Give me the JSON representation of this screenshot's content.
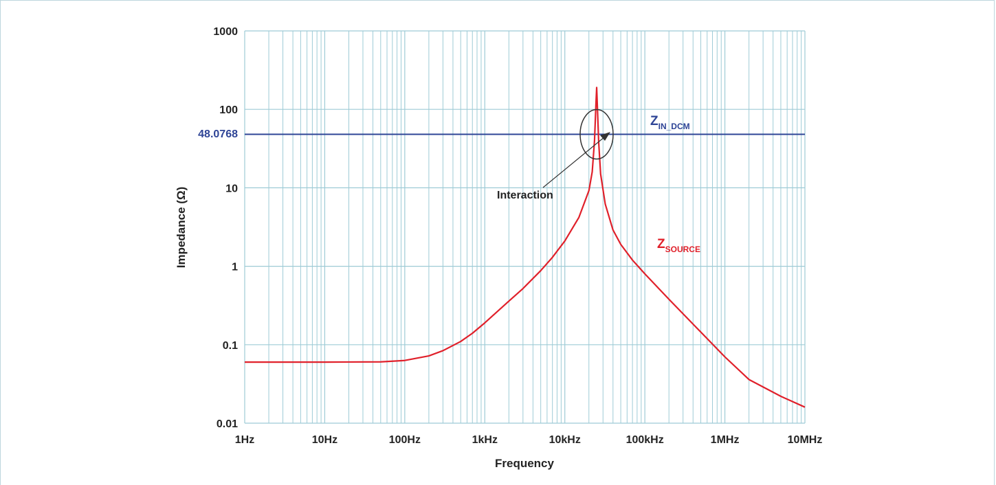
{
  "chart_data": {
    "type": "line",
    "title": "",
    "xlabel": "Frequency",
    "ylabel": "Impedance (Ω)",
    "x_scale": "log",
    "y_scale": "log",
    "xlim": [
      1,
      10000000
    ],
    "ylim": [
      0.01,
      1000
    ],
    "grid": true,
    "x_tick_labels": [
      "1Hz",
      "10Hz",
      "100Hz",
      "1kHz",
      "10kHz",
      "100kHz",
      "1MHz",
      "10MHz"
    ],
    "x_tick_values": [
      1,
      10,
      100,
      1000,
      10000,
      100000,
      1000000,
      10000000
    ],
    "y_tick_labels": [
      "0.01",
      "0.1",
      "1",
      "10",
      "100",
      "1000"
    ],
    "y_tick_values": [
      0.01,
      0.1,
      1,
      10,
      100,
      1000
    ],
    "series": [
      {
        "name": "",
        "label_main": "Z",
        "label_sub": "IN_DCM",
        "color": "#2e4496",
        "x": [
          1,
          10000000
        ],
        "y": [
          48.0768,
          48.0768
        ],
        "value_label": "48.0768"
      },
      {
        "name": "",
        "label_main": "Z",
        "label_sub": "SOURCE",
        "color": "#e0202a",
        "x": [
          1,
          10,
          50,
          100,
          200,
          300,
          500,
          700,
          1000,
          2000,
          3000,
          5000,
          7000,
          10000,
          15000,
          20000,
          22000,
          23500,
          24500,
          25000,
          25500,
          26500,
          28000,
          32000,
          40000,
          50000,
          70000,
          100000,
          200000,
          500000,
          1000000,
          2000000,
          5000000,
          10000000
        ],
        "y": [
          0.06,
          0.06,
          0.0605,
          0.063,
          0.072,
          0.084,
          0.11,
          0.14,
          0.19,
          0.36,
          0.52,
          0.88,
          1.3,
          2.1,
          4.2,
          9.2,
          16,
          40,
          120,
          190,
          110,
          38,
          15,
          6.2,
          2.9,
          1.9,
          1.2,
          0.8,
          0.38,
          0.145,
          0.07,
          0.036,
          0.022,
          0.016
        ]
      }
    ],
    "annotations": {
      "interaction_label": "Interaction",
      "circle_center": [
        25000,
        48.0768
      ]
    }
  }
}
